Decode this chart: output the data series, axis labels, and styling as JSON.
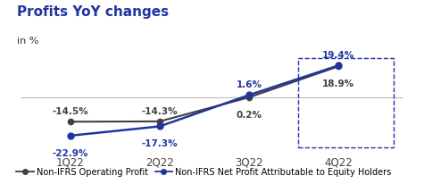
{
  "title": "Profits YoY changes",
  "subtitle": "in %",
  "categories": [
    "1Q22",
    "2Q22",
    "3Q22",
    "4Q22"
  ],
  "series1_label": "Non-IFRS Operating Profit",
  "series1_values": [
    -14.5,
    -14.3,
    0.2,
    18.9
  ],
  "series1_color": "#404040",
  "series2_label": "Non-IFRS Net Profit Attributable to Equity Holders",
  "series2_values": [
    -22.9,
    -17.3,
    1.6,
    19.4
  ],
  "series2_color": "#2035a0",
  "series1_labels": [
    "-14.5%",
    "-14.3%",
    "0.2%",
    "18.9%"
  ],
  "series2_labels": [
    "-22.9%",
    "-17.3%",
    "1.6%",
    "19.4%"
  ],
  "title_color": "#2035a0",
  "subtitle_color": "#333333",
  "background_color": "#ffffff",
  "zero_line_color": "#bbbbbb",
  "dashed_box_color": "#2035a0",
  "ylim": [
    -32,
    26
  ],
  "title_fontsize": 11,
  "subtitle_fontsize": 8,
  "label_fontsize": 7.5,
  "legend_fontsize": 7,
  "tick_fontsize": 8.5
}
